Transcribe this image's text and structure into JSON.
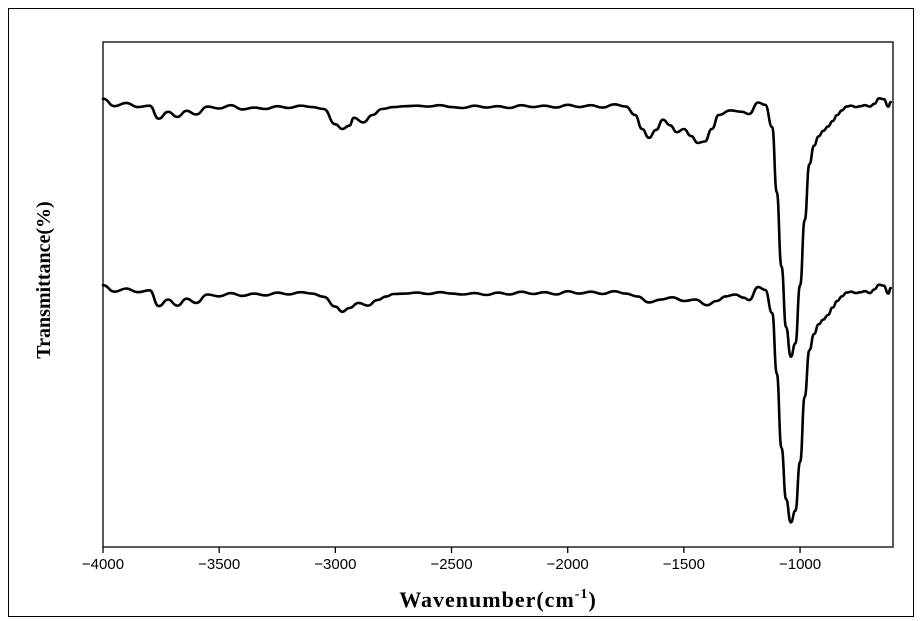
{
  "chart_data": {
    "type": "line",
    "xlabel": "Wavenumber(cm",
    "xlabel_superscript": "-1",
    "xlabel_suffix": ")",
    "ylabel": "Transmittance(%)",
    "xlim": [
      -4000,
      -600
    ],
    "xticks": [
      -4000,
      -3500,
      -3000,
      -2500,
      -2000,
      -1500,
      -1000
    ],
    "xtick_labels": [
      "−4000",
      "−3500",
      "−3000",
      "−2500",
      "−2000",
      "−1500",
      "−1000"
    ],
    "ylim": [
      0,
      100
    ],
    "grid": false,
    "legend": "none",
    "series": [
      {
        "points": [
          [
            -4000,
            92.1
          ],
          [
            -3950,
            90.5
          ],
          [
            -3900,
            91.2
          ],
          [
            -3850,
            90.3
          ],
          [
            -3800,
            90.6
          ],
          [
            -3760,
            87.8
          ],
          [
            -3720,
            89.3
          ],
          [
            -3680,
            88.2
          ],
          [
            -3640,
            89.5
          ],
          [
            -3600,
            88.7
          ],
          [
            -3550,
            90.4
          ],
          [
            -3500,
            90.0
          ],
          [
            -3450,
            90.7
          ],
          [
            -3400,
            89.8
          ],
          [
            -3350,
            90.2
          ],
          [
            -3300,
            89.9
          ],
          [
            -3250,
            90.5
          ],
          [
            -3200,
            90.1
          ],
          [
            -3150,
            90.6
          ],
          [
            -3100,
            90.3
          ],
          [
            -3050,
            89.9
          ],
          [
            -3000,
            86.6
          ],
          [
            -2970,
            85.6
          ],
          [
            -2940,
            86.3
          ],
          [
            -2920,
            88.0
          ],
          [
            -2880,
            87.0
          ],
          [
            -2840,
            88.6
          ],
          [
            -2800,
            89.9
          ],
          [
            -2750,
            90.3
          ],
          [
            -2700,
            90.5
          ],
          [
            -2650,
            90.6
          ],
          [
            -2600,
            90.4
          ],
          [
            -2550,
            90.7
          ],
          [
            -2500,
            90.3
          ],
          [
            -2450,
            90.1
          ],
          [
            -2400,
            90.6
          ],
          [
            -2350,
            90.2
          ],
          [
            -2300,
            90.5
          ],
          [
            -2250,
            90.1
          ],
          [
            -2200,
            90.7
          ],
          [
            -2150,
            90.3
          ],
          [
            -2100,
            90.6
          ],
          [
            -2050,
            90.2
          ],
          [
            -2000,
            90.8
          ],
          [
            -1950,
            90.3
          ],
          [
            -1900,
            90.7
          ],
          [
            -1850,
            90.2
          ],
          [
            -1800,
            90.9
          ],
          [
            -1750,
            90.4
          ],
          [
            -1710,
            88.6
          ],
          [
            -1680,
            85.6
          ],
          [
            -1650,
            83.7
          ],
          [
            -1620,
            85.4
          ],
          [
            -1590,
            87.6
          ],
          [
            -1560,
            86.4
          ],
          [
            -1530,
            84.9
          ],
          [
            -1500,
            85.6
          ],
          [
            -1470,
            84.1
          ],
          [
            -1440,
            82.6
          ],
          [
            -1410,
            82.9
          ],
          [
            -1380,
            85.6
          ],
          [
            -1350,
            88.6
          ],
          [
            -1300,
            89.6
          ],
          [
            -1250,
            89.3
          ],
          [
            -1220,
            88.8
          ],
          [
            -1180,
            91.3
          ],
          [
            -1150,
            90.8
          ],
          [
            -1120,
            86.0
          ],
          [
            -1100,
            72.0
          ],
          [
            -1080,
            56.0
          ],
          [
            -1060,
            43.0
          ],
          [
            -1040,
            36.6
          ],
          [
            -1020,
            39.5
          ],
          [
            -1000,
            52.0
          ],
          [
            -980,
            66.0
          ],
          [
            -960,
            78.0
          ],
          [
            -940,
            82.0
          ],
          [
            -920,
            84.0
          ],
          [
            -900,
            85.2
          ],
          [
            -880,
            86.1
          ],
          [
            -860,
            87.3
          ],
          [
            -840,
            88.6
          ],
          [
            -820,
            89.6
          ],
          [
            -800,
            90.4
          ],
          [
            -780,
            90.6
          ],
          [
            -760,
            90.3
          ],
          [
            -740,
            90.5
          ],
          [
            -720,
            90.7
          ],
          [
            -700,
            90.4
          ],
          [
            -680,
            91.0
          ],
          [
            -660,
            92.2
          ],
          [
            -640,
            92.0
          ],
          [
            -620,
            90.4
          ],
          [
            -610,
            91.4
          ]
        ]
      },
      {
        "points": [
          [
            -4000,
            52.0
          ],
          [
            -3950,
            50.6
          ],
          [
            -3900,
            51.3
          ],
          [
            -3850,
            50.5
          ],
          [
            -3800,
            50.9
          ],
          [
            -3760,
            47.5
          ],
          [
            -3720,
            48.9
          ],
          [
            -3680,
            47.6
          ],
          [
            -3640,
            49.1
          ],
          [
            -3600,
            48.2
          ],
          [
            -3550,
            50.0
          ],
          [
            -3500,
            49.6
          ],
          [
            -3450,
            50.3
          ],
          [
            -3400,
            49.7
          ],
          [
            -3350,
            50.2
          ],
          [
            -3300,
            49.8
          ],
          [
            -3250,
            50.4
          ],
          [
            -3200,
            50.0
          ],
          [
            -3150,
            50.5
          ],
          [
            -3100,
            50.2
          ],
          [
            -3050,
            49.5
          ],
          [
            -3000,
            47.4
          ],
          [
            -2970,
            46.3
          ],
          [
            -2940,
            47.1
          ],
          [
            -2900,
            48.2
          ],
          [
            -2860,
            47.6
          ],
          [
            -2820,
            48.8
          ],
          [
            -2780,
            49.6
          ],
          [
            -2750,
            50.1
          ],
          [
            -2700,
            50.2
          ],
          [
            -2650,
            50.4
          ],
          [
            -2600,
            50.1
          ],
          [
            -2550,
            50.5
          ],
          [
            -2500,
            50.2
          ],
          [
            -2450,
            50.0
          ],
          [
            -2400,
            50.3
          ],
          [
            -2350,
            49.9
          ],
          [
            -2300,
            50.4
          ],
          [
            -2250,
            50.0
          ],
          [
            -2200,
            50.6
          ],
          [
            -2150,
            50.1
          ],
          [
            -2100,
            50.5
          ],
          [
            -2050,
            50.0
          ],
          [
            -2000,
            50.7
          ],
          [
            -1950,
            50.2
          ],
          [
            -1900,
            50.6
          ],
          [
            -1850,
            50.1
          ],
          [
            -1800,
            50.7
          ],
          [
            -1750,
            50.2
          ],
          [
            -1700,
            49.6
          ],
          [
            -1650,
            48.3
          ],
          [
            -1600,
            48.9
          ],
          [
            -1550,
            49.4
          ],
          [
            -1500,
            48.6
          ],
          [
            -1450,
            48.9
          ],
          [
            -1400,
            47.7
          ],
          [
            -1360,
            48.6
          ],
          [
            -1320,
            49.6
          ],
          [
            -1280,
            50.0
          ],
          [
            -1240,
            49.3
          ],
          [
            -1220,
            48.8
          ],
          [
            -1180,
            51.6
          ],
          [
            -1150,
            51.0
          ],
          [
            -1120,
            46.0
          ],
          [
            -1100,
            33.0
          ],
          [
            -1080,
            17.0
          ],
          [
            -1060,
            6.0
          ],
          [
            -1040,
            1.0
          ],
          [
            -1020,
            3.5
          ],
          [
            -1000,
            14.0
          ],
          [
            -980,
            28.0
          ],
          [
            -960,
            38.0
          ],
          [
            -940,
            41.5
          ],
          [
            -920,
            43.6
          ],
          [
            -900,
            44.6
          ],
          [
            -880,
            45.6
          ],
          [
            -860,
            47.2
          ],
          [
            -840,
            48.6
          ],
          [
            -820,
            49.6
          ],
          [
            -800,
            50.4
          ],
          [
            -780,
            50.6
          ],
          [
            -760,
            50.3
          ],
          [
            -740,
            50.5
          ],
          [
            -720,
            50.7
          ],
          [
            -700,
            50.3
          ],
          [
            -680,
            51.1
          ],
          [
            -660,
            52.1
          ],
          [
            -640,
            51.9
          ],
          [
            -620,
            50.2
          ],
          [
            -610,
            51.4
          ]
        ]
      }
    ]
  }
}
